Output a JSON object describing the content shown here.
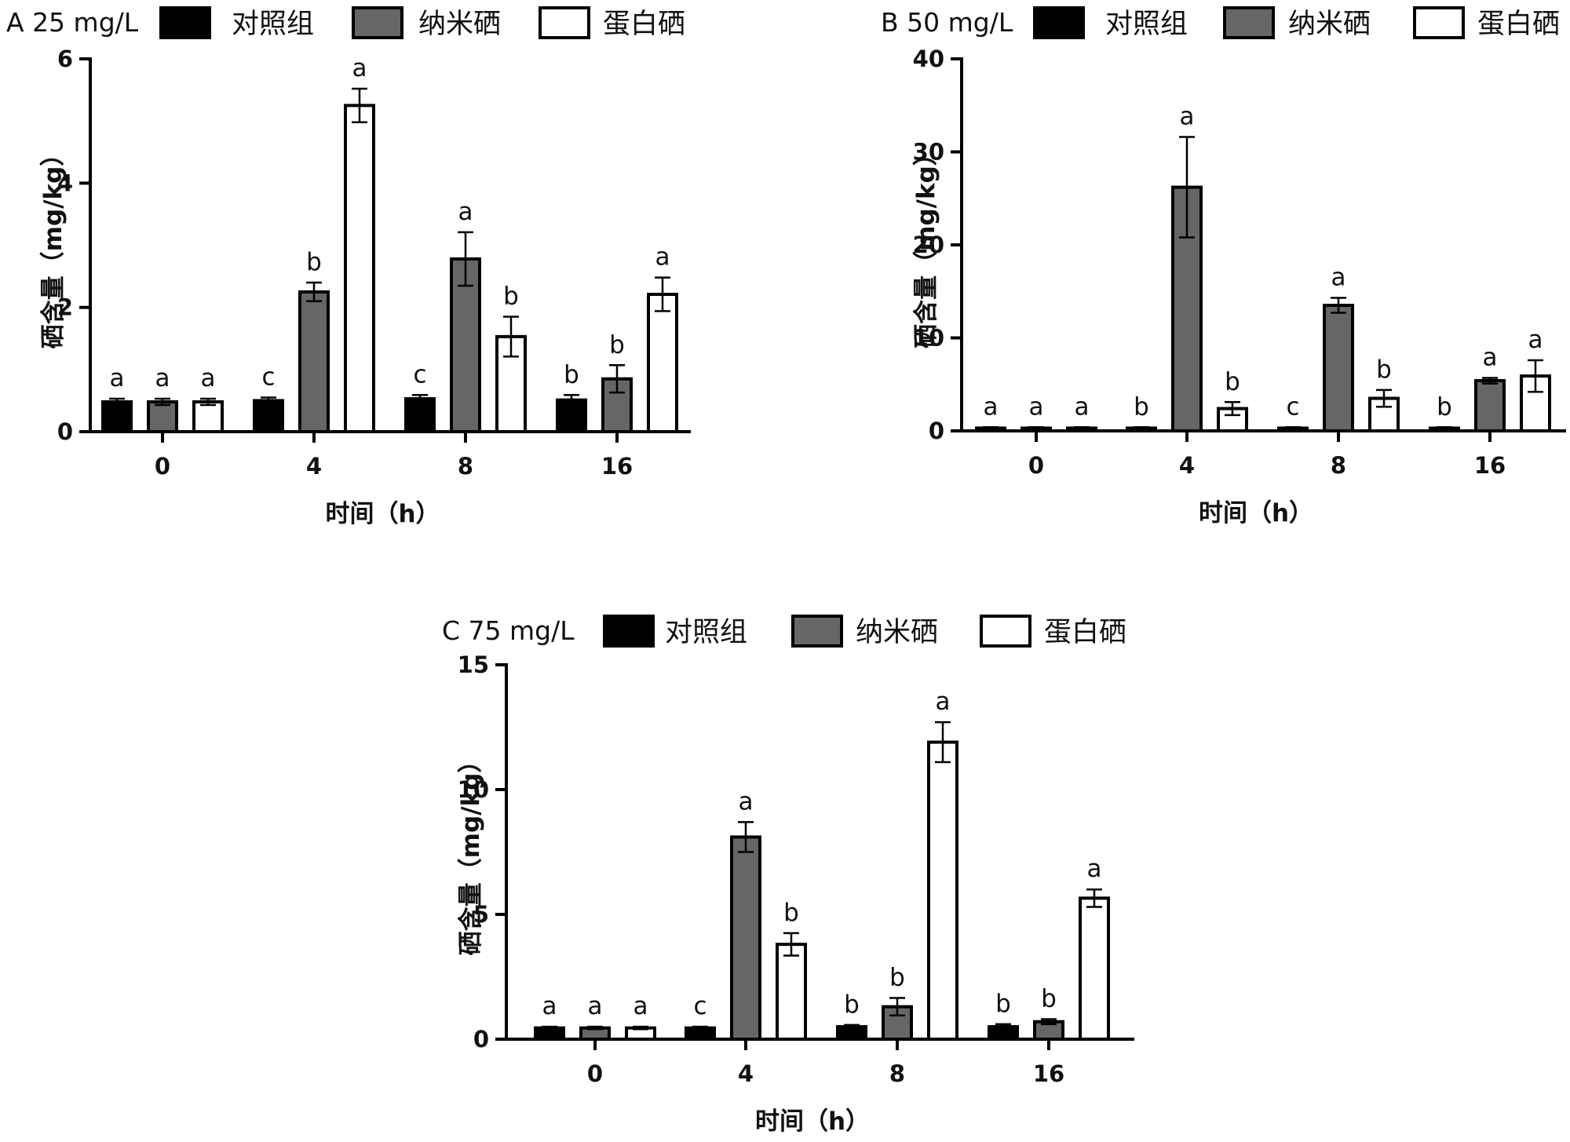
{
  "chart_data": [
    {
      "type": "bar",
      "title": "A 25 mg/L",
      "xlabel": "时间（h）",
      "ylabel": "硒含量（mg/kg）",
      "ylim": [
        0,
        6
      ],
      "yticks": [
        "0",
        "2",
        "4",
        "6"
      ],
      "categories": [
        "0",
        "4",
        "8",
        "16"
      ],
      "series": [
        {
          "name": "对照组",
          "values": [
            0.48,
            0.5,
            0.53,
            0.51
          ],
          "errors": [
            0.05,
            0.05,
            0.06,
            0.08
          ],
          "labels": [
            "a",
            "c",
            "c",
            "b"
          ]
        },
        {
          "name": "纳米硒",
          "values": [
            0.48,
            2.25,
            2.78,
            0.85
          ],
          "errors": [
            0.05,
            0.15,
            0.43,
            0.22
          ],
          "labels": [
            "a",
            "b",
            "a",
            "b"
          ]
        },
        {
          "name": "蛋白硒",
          "values": [
            0.48,
            5.25,
            1.53,
            2.21
          ],
          "errors": [
            0.05,
            0.27,
            0.32,
            0.27
          ],
          "labels": [
            "a",
            "a",
            "b",
            "a"
          ]
        }
      ]
    },
    {
      "type": "bar",
      "title": "B 50 mg/L",
      "xlabel": "时间（h）",
      "ylabel": "硒含量（mg/kg）",
      "ylim": [
        0,
        40
      ],
      "yticks": [
        "0",
        "10",
        "20",
        "30",
        "40"
      ],
      "categories": [
        "0",
        "4",
        "8",
        "16"
      ],
      "series": [
        {
          "name": "对照组",
          "values": [
            0.3,
            0.3,
            0.3,
            0.3
          ],
          "errors": [
            0.1,
            0.1,
            0.1,
            0.1
          ],
          "labels": [
            "a",
            "b",
            "c",
            "b"
          ]
        },
        {
          "name": "纳米硒",
          "values": [
            0.3,
            26.2,
            13.5,
            5.4
          ],
          "errors": [
            0.1,
            5.4,
            0.8,
            0.3
          ],
          "labels": [
            "a",
            "a",
            "a",
            "a"
          ]
        },
        {
          "name": "蛋白硒",
          "values": [
            0.3,
            2.4,
            3.5,
            5.9
          ],
          "errors": [
            0.1,
            0.7,
            0.9,
            1.7
          ],
          "labels": [
            "a",
            "b",
            "b",
            "a"
          ]
        }
      ]
    },
    {
      "type": "bar",
      "title": "C 75 mg/L",
      "xlabel": "时间（h）",
      "ylabel": "硒含量（mg/kg）",
      "ylim": [
        0,
        15
      ],
      "yticks": [
        "0",
        "5",
        "10",
        "15"
      ],
      "categories": [
        "0",
        "4",
        "8",
        "16"
      ],
      "series": [
        {
          "name": "对照组",
          "values": [
            0.45,
            0.45,
            0.5,
            0.5
          ],
          "errors": [
            0.05,
            0.05,
            0.07,
            0.1
          ],
          "labels": [
            "a",
            "c",
            "b",
            "b"
          ]
        },
        {
          "name": "纳米硒",
          "values": [
            0.45,
            8.1,
            1.3,
            0.7
          ],
          "errors": [
            0.05,
            0.6,
            0.35,
            0.1
          ],
          "labels": [
            "a",
            "a",
            "b",
            "b"
          ]
        },
        {
          "name": "蛋白硒",
          "values": [
            0.45,
            3.8,
            11.9,
            5.65
          ],
          "errors": [
            0.05,
            0.45,
            0.8,
            0.35
          ],
          "labels": [
            "a",
            "b",
            "a",
            "a"
          ]
        }
      ]
    }
  ],
  "colors": {
    "对照组": "#000000",
    "纳米硒": "#666666",
    "蛋白硒": "#ffffff"
  }
}
